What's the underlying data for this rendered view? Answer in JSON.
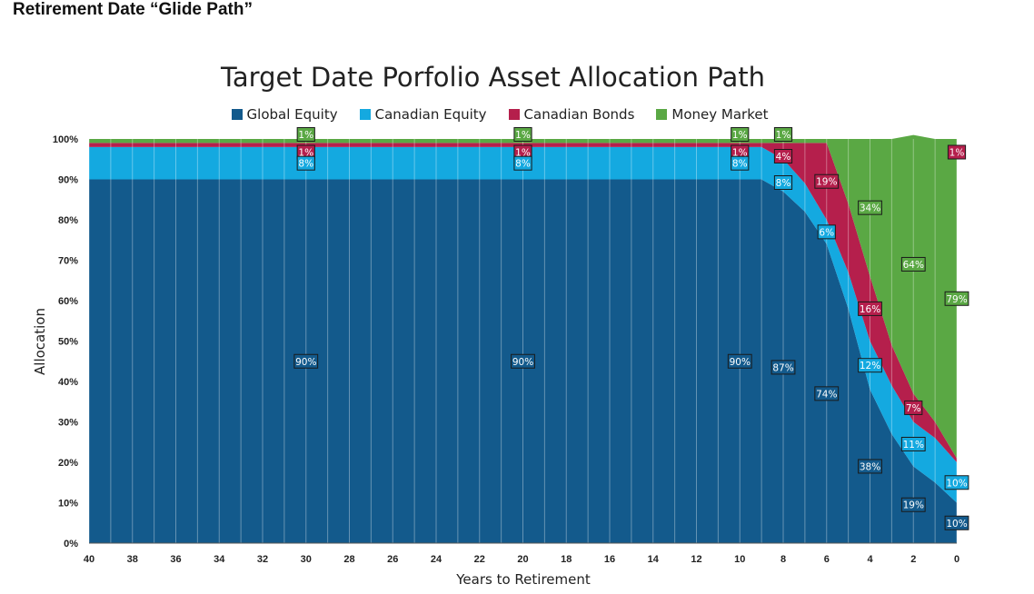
{
  "page": {
    "heading": "Retirement Date “Glide Path”"
  },
  "chart_data": {
    "type": "area",
    "title": "Target Date Porfolio Asset Allocation Path",
    "xlabel": "Years to Retirement",
    "ylabel": "Allocation",
    "x": [
      40,
      38,
      36,
      34,
      32,
      30,
      28,
      26,
      24,
      22,
      20,
      18,
      16,
      14,
      12,
      10,
      9,
      8,
      7,
      6,
      5,
      4,
      3,
      2,
      1,
      0
    ],
    "xlim": [
      40,
      0
    ],
    "ylim": [
      0,
      100
    ],
    "x_ticks": [
      "40",
      "38",
      "36",
      "34",
      "32",
      "30",
      "28",
      "26",
      "24",
      "22",
      "20",
      "18",
      "16",
      "14",
      "12",
      "10",
      "8",
      "6",
      "4",
      "2",
      "0"
    ],
    "y_ticks": [
      "0%",
      "10%",
      "20%",
      "30%",
      "40%",
      "50%",
      "60%",
      "70%",
      "80%",
      "90%",
      "100%"
    ],
    "grid": true,
    "legend_position": "top",
    "series": [
      {
        "name": "Global Equity",
        "color": "#135a8c",
        "values": [
          90,
          90,
          90,
          90,
          90,
          90,
          90,
          90,
          90,
          90,
          90,
          90,
          90,
          90,
          90,
          90,
          90,
          87,
          82,
          74,
          58,
          38,
          27,
          19,
          15,
          10
        ]
      },
      {
        "name": "Canadian Equity",
        "color": "#14a9e0",
        "values": [
          8,
          8,
          8,
          8,
          8,
          8,
          8,
          8,
          8,
          8,
          8,
          8,
          8,
          8,
          8,
          8,
          8,
          8,
          7,
          6,
          9,
          12,
          12,
          11,
          11,
          10
        ]
      },
      {
        "name": "Canadian Bonds",
        "color": "#b51f4c",
        "values": [
          1,
          1,
          1,
          1,
          1,
          1,
          1,
          1,
          1,
          1,
          1,
          1,
          1,
          1,
          1,
          1,
          1,
          4,
          10,
          19,
          17,
          16,
          10,
          7,
          4,
          1
        ]
      },
      {
        "name": "Money Market",
        "color": "#5aa844",
        "values": [
          1,
          1,
          1,
          1,
          1,
          1,
          1,
          1,
          1,
          1,
          1,
          1,
          1,
          1,
          1,
          1,
          1,
          1,
          1,
          1,
          16,
          34,
          51,
          64,
          70,
          79
        ]
      }
    ],
    "annotations": [
      {
        "x": 30,
        "series": "Money Market",
        "text": "1%"
      },
      {
        "x": 30,
        "series": "Canadian Bonds",
        "text": "1%"
      },
      {
        "x": 30,
        "series": "Canadian Equity",
        "text": "8%"
      },
      {
        "x": 30,
        "series": "Global Equity",
        "text": "90%"
      },
      {
        "x": 20,
        "series": "Money Market",
        "text": "1%"
      },
      {
        "x": 20,
        "series": "Canadian Bonds",
        "text": "1%"
      },
      {
        "x": 20,
        "series": "Canadian Equity",
        "text": "8%"
      },
      {
        "x": 20,
        "series": "Global Equity",
        "text": "90%"
      },
      {
        "x": 10,
        "series": "Money Market",
        "text": "1%"
      },
      {
        "x": 10,
        "series": "Canadian Bonds",
        "text": "1%"
      },
      {
        "x": 10,
        "series": "Canadian Equity",
        "text": "8%"
      },
      {
        "x": 10,
        "series": "Global Equity",
        "text": "90%"
      },
      {
        "x": 8,
        "series": "Money Market",
        "text": "1%"
      },
      {
        "x": 8,
        "series": "Canadian Bonds",
        "text": "4%"
      },
      {
        "x": 8,
        "series": "Canadian Equity",
        "text": "8%"
      },
      {
        "x": 8,
        "series": "Global Equity",
        "text": "87%"
      },
      {
        "x": 6,
        "series": "Canadian Bonds",
        "text": "19%"
      },
      {
        "x": 6,
        "series": "Canadian Equity",
        "text": "6%"
      },
      {
        "x": 6,
        "series": "Global Equity",
        "text": "74%"
      },
      {
        "x": 4,
        "series": "Money Market",
        "text": "34%"
      },
      {
        "x": 4,
        "series": "Canadian Bonds",
        "text": "16%"
      },
      {
        "x": 4,
        "series": "Canadian Equity",
        "text": "12%"
      },
      {
        "x": 4,
        "series": "Global Equity",
        "text": "38%"
      },
      {
        "x": 2,
        "series": "Money Market",
        "text": "64%"
      },
      {
        "x": 2,
        "series": "Canadian Bonds",
        "text": "7%"
      },
      {
        "x": 2,
        "series": "Canadian Equity",
        "text": "11%"
      },
      {
        "x": 2,
        "series": "Global Equity",
        "text": "19%"
      },
      {
        "x": 0,
        "series": "Money Market",
        "text": "79%"
      },
      {
        "x": 0,
        "series": "Canadian Bonds",
        "text": "1%"
      },
      {
        "x": 0,
        "series": "Canadian Equity",
        "text": "10%"
      },
      {
        "x": 0,
        "series": "Global Equity",
        "text": "10%"
      }
    ]
  }
}
